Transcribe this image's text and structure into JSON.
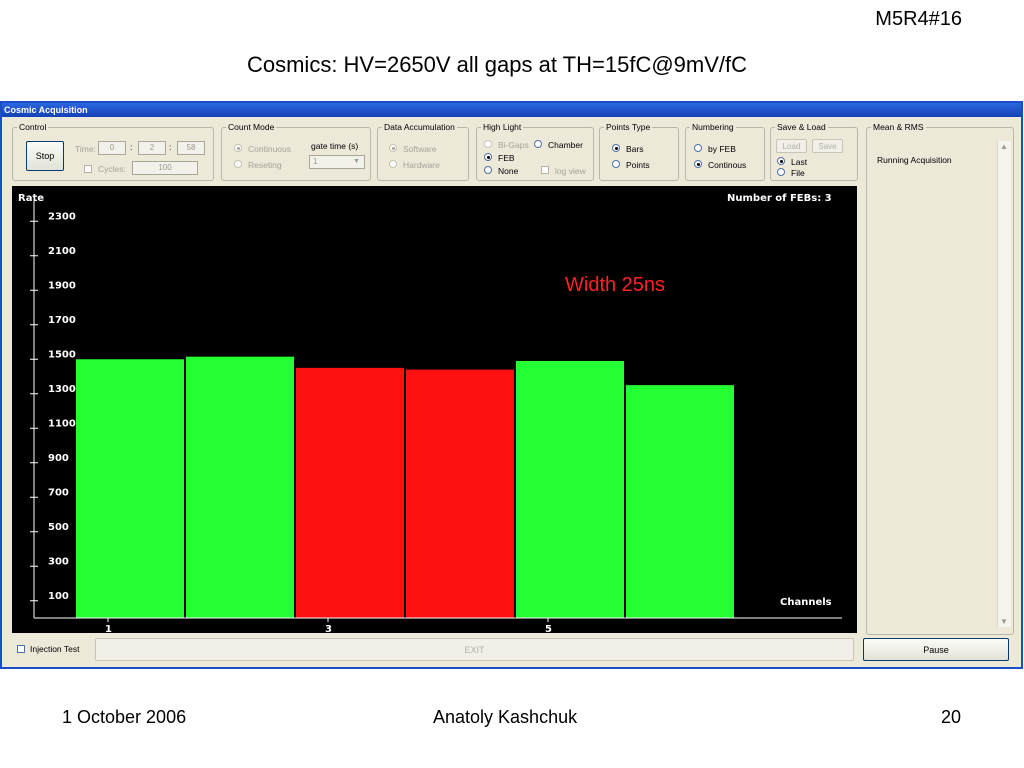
{
  "slide": {
    "tag": "M5R4#16",
    "title": "Cosmics: HV=2650V all gaps at TH=15fC@9mV/fC",
    "footer_date": "1 October 2006",
    "footer_author": "Anatoly Kashchuk",
    "footer_page": "20"
  },
  "window": {
    "title": "Cosmic Acquisition",
    "control": {
      "legend": "Control",
      "stop_label": "Stop",
      "time_label": "Time:",
      "time_h": "0",
      "time_m": "2",
      "time_s": "58",
      "cycles_label": "Cycles:",
      "cycles_value": "100"
    },
    "count_mode": {
      "legend": "Count Mode",
      "continuous": "Continuous",
      "reseting": "Reseting",
      "gate_time_label": "gate time (s)",
      "gate_time_value": "1"
    },
    "data_accumulation": {
      "legend": "Data Accumulation",
      "software": "Software",
      "hardware": "Hardware"
    },
    "high_light": {
      "legend": "High Light",
      "bigaps": "Bi-Gaps",
      "chamber": "Chamber",
      "feb": "FEB",
      "none": "None",
      "log_view": "log view"
    },
    "points_type": {
      "legend": "Points Type",
      "bars": "Bars",
      "points": "Points"
    },
    "numbering": {
      "legend": "Numbering",
      "by_feb": "by FEB",
      "continous": "Continous"
    },
    "save_load": {
      "legend": "Save & Load",
      "load": "Load",
      "save": "Save",
      "last": "Last",
      "file": "File"
    },
    "mean_rms": {
      "legend": "Mean & RMS",
      "status": "Running Acquisition"
    },
    "bottom": {
      "injection_test": "Injection Test",
      "exit": "EXIT",
      "pause": "Pause"
    }
  },
  "chart_data": {
    "type": "bar",
    "ylabel": "Rate",
    "xlabel": "Channels",
    "info": "Number of FEBs:  3",
    "annotation": "Width 25ns",
    "ylim": [
      0,
      2400
    ],
    "yticks": [
      100,
      300,
      500,
      700,
      900,
      1100,
      1300,
      1500,
      1700,
      1900,
      2100,
      2300
    ],
    "xtick_labels": [
      "1",
      "3",
      "5"
    ],
    "categories": [
      "1",
      "2",
      "3",
      "4",
      "5",
      "6"
    ],
    "values": [
      1500,
      1515,
      1450,
      1440,
      1490,
      1350
    ],
    "colors": [
      "#22ff33",
      "#22ff33",
      "#ff1111",
      "#ff1111",
      "#22ff33",
      "#22ff33"
    ],
    "background": "#000000",
    "annotation_color": "#ff2222"
  }
}
